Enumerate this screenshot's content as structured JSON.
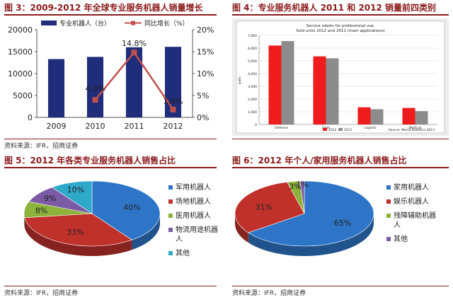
{
  "panels": [
    {
      "title": "图 3：2009-2012 年全球专业服务机器人销量增长",
      "source": "资料来源：IFR，招商证券"
    },
    {
      "title": "图 4：专业服务机器人 2011 和 2012 销量前四类别",
      "source": ""
    },
    {
      "title": "图 5：2012 年各类专业服务机器人销售占比",
      "source": "资料来源：IFR，招商证券"
    },
    {
      "title": "图 6：2012 年个人/家用服务机器人销售占比",
      "source": "资料来源：IFR，招商证券"
    }
  ],
  "colors": {
    "navy": "#1f2d7a",
    "red_line": "#c0504d",
    "title_red": "#8b1a1a",
    "bar_red": "#ee1c1c",
    "bar_gray": "#8c8c8c",
    "pie_blue": "#2e75c8",
    "pie_red": "#c0312c",
    "pie_green": "#8db33a",
    "pie_purple": "#7b5aa6",
    "pie_cyan": "#2fa9c9"
  },
  "chart_data": [
    {
      "type": "bar",
      "categories": [
        "2009",
        "2010",
        "2011",
        "2012"
      ],
      "series": [
        {
          "name": "专业机器人（台）",
          "type": "bar",
          "axis": "left",
          "values": [
            13300,
            13800,
            16000,
            16100
          ]
        },
        {
          "name": "同比增长（%）",
          "type": "line",
          "axis": "right",
          "values": [
            4.0,
            4.0,
            14.8,
            1.8
          ]
        }
      ],
      "data_labels": [
        "4.0%",
        "14.8%",
        "1.8%"
      ],
      "ylim_left": [
        0,
        20000
      ],
      "yticks_left": [
        "0",
        "5000",
        "10000",
        "15000",
        "20000"
      ],
      "ylim_right": [
        0,
        20
      ],
      "yticks_right": [
        "0%",
        "5%",
        "10%",
        "15%",
        "20%"
      ],
      "legend": "top"
    },
    {
      "type": "bar",
      "title": "Service robots for professional use.",
      "subtitle": "Sold units 2012 and 2011 (main applications)",
      "ylabel": "units",
      "categories": [
        "Defence",
        "Field",
        "Logistic",
        "Medical"
      ],
      "series": [
        {
          "name": "2012",
          "values": [
            6200,
            5350,
            1350,
            1300
          ]
        },
        {
          "name": "2011",
          "values": [
            6550,
            5200,
            1200,
            1050
          ]
        }
      ],
      "ylim": [
        0,
        7000
      ],
      "yticks": [
        "0",
        "1,000",
        "2,000",
        "3,000",
        "4,000",
        "5,000",
        "6,000",
        "7,000"
      ],
      "note": "Source: World Robotics 2013",
      "grid": true,
      "legend": "bottom-left"
    },
    {
      "type": "pie",
      "labels": [
        "军用机器人",
        "场地机器人",
        "医用机器人",
        "物流用途机器人",
        "其他"
      ],
      "values": [
        40,
        33,
        8,
        9,
        10
      ],
      "value_labels": [
        "40%",
        "33%",
        "8%",
        "9%",
        "10%"
      ],
      "legend": "right"
    },
    {
      "type": "pie",
      "labels": [
        "家用机器人",
        "娱乐机器人",
        "残障辅助机器人",
        "其他"
      ],
      "values": [
        65,
        31,
        3,
        1
      ],
      "value_labels": [
        "65%",
        "31%",
        "3%",
        "1%"
      ],
      "legend": "right"
    }
  ]
}
